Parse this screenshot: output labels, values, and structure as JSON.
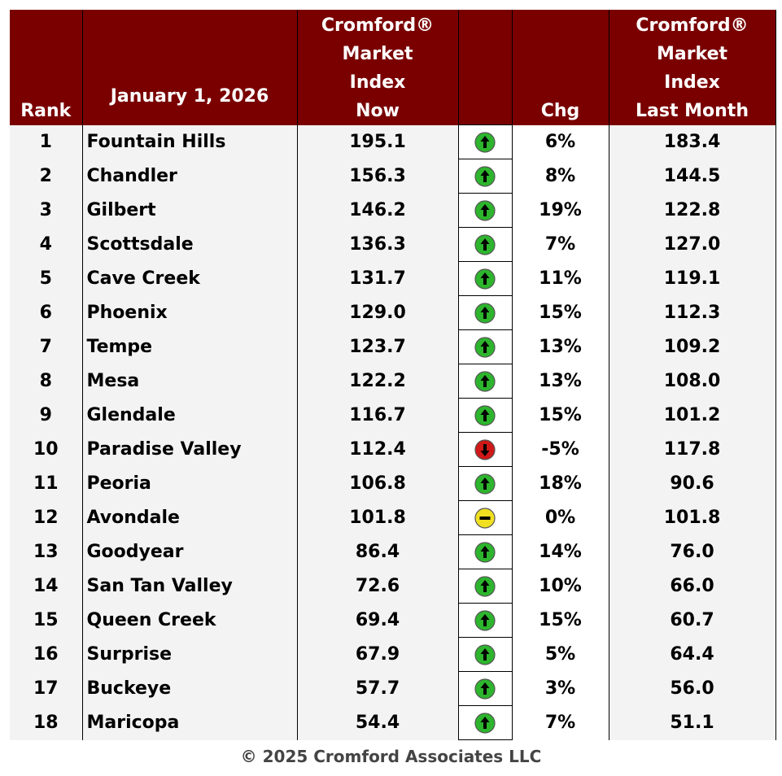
{
  "header": {
    "columns": [
      [
        "Rank"
      ],
      [
        "January 1, 2026"
      ],
      [
        "Cromford®",
        "Market",
        "Index",
        "Now"
      ],
      [],
      [
        "Chg"
      ],
      [
        "Cromford®",
        "Market",
        "Index",
        "Last Month"
      ]
    ]
  },
  "table": {
    "rows": [
      [
        "1",
        "Fountain Hills",
        "195.1",
        "up",
        "6%",
        "183.4"
      ],
      [
        "2",
        "Chandler",
        "156.3",
        "up",
        "8%",
        "144.5"
      ],
      [
        "3",
        "Gilbert",
        "146.2",
        "up",
        "19%",
        "122.8"
      ],
      [
        "4",
        "Scottsdale",
        "136.3",
        "up",
        "7%",
        "127.0"
      ],
      [
        "5",
        "Cave Creek",
        "131.7",
        "up",
        "11%",
        "119.1"
      ],
      [
        "6",
        "Phoenix",
        "129.0",
        "up",
        "15%",
        "112.3"
      ],
      [
        "7",
        "Tempe",
        "123.7",
        "up",
        "13%",
        "109.2"
      ],
      [
        "8",
        "Mesa",
        "122.2",
        "up",
        "13%",
        "108.0"
      ],
      [
        "9",
        "Glendale",
        "116.7",
        "up",
        "15%",
        "101.2"
      ],
      [
        "10",
        "Paradise Valley",
        "112.4",
        "down",
        "-5%",
        "117.8"
      ],
      [
        "11",
        "Peoria",
        "106.8",
        "up",
        "18%",
        "90.6"
      ],
      [
        "12",
        "Avondale",
        "101.8",
        "flat",
        "0%",
        "101.8"
      ],
      [
        "13",
        "Goodyear",
        "86.4",
        "up",
        "14%",
        "76.0"
      ],
      [
        "14",
        "San Tan Valley",
        "72.6",
        "up",
        "10%",
        "66.0"
      ],
      [
        "15",
        "Queen Creek",
        "69.4",
        "up",
        "15%",
        "60.7"
      ],
      [
        "16",
        "Surprise",
        "67.9",
        "up",
        "5%",
        "64.4"
      ],
      [
        "17",
        "Buckeye",
        "57.7",
        "up",
        "3%",
        "56.0"
      ],
      [
        "18",
        "Maricopa",
        "54.4",
        "up",
        "7%",
        "51.1"
      ]
    ]
  },
  "footer": {
    "text": "© 2025 Cromford Associates LLC"
  }
}
